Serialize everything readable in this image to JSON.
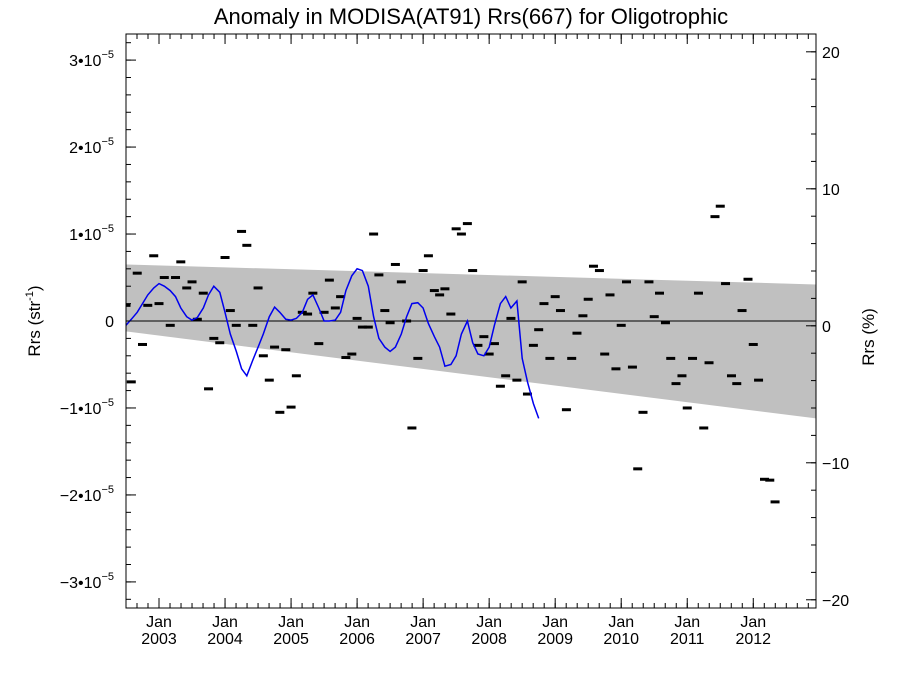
{
  "chart_data": {
    "type": "line",
    "title": "Anomaly in MODISA(AT91) Rrs(667) for Oligotrophic",
    "ylabel_left": "Rrs (str",
    "ylabel_left_sup": "-1",
    "ylabel_left_close": ")",
    "ylabel_right": "Rrs (%)",
    "ylim_left": [
      -3.3e-05,
      3.3e-05
    ],
    "ylim_right": [
      -20.6,
      21.3
    ],
    "xlim": [
      2002.5,
      2012.95
    ],
    "left_ticks": [
      {
        "value": 3e-05,
        "mant": "3•10",
        "exp": "−5"
      },
      {
        "value": 2e-05,
        "mant": "2•10",
        "exp": "−5"
      },
      {
        "value": 1e-05,
        "mant": "1•10",
        "exp": "−5"
      },
      {
        "value": 0,
        "mant": "0",
        "exp": ""
      },
      {
        "value": -1e-05,
        "mant": "−1•10",
        "exp": "−5"
      },
      {
        "value": -2e-05,
        "mant": "−2•10",
        "exp": "−5"
      },
      {
        "value": -3e-05,
        "mant": "−3•10",
        "exp": "−5"
      }
    ],
    "right_ticks": [
      {
        "value": 20,
        "label": "20"
      },
      {
        "value": 10,
        "label": "10"
      },
      {
        "value": 0,
        "label": "0"
      },
      {
        "value": -10,
        "label": "−10"
      },
      {
        "value": -20,
        "label": "−20"
      }
    ],
    "x_ticks": [
      {
        "value": 2003,
        "month": "Jan",
        "year": "2003"
      },
      {
        "value": 2004,
        "month": "Jan",
        "year": "2004"
      },
      {
        "value": 2005,
        "month": "Jan",
        "year": "2005"
      },
      {
        "value": 2006,
        "month": "Jan",
        "year": "2006"
      },
      {
        "value": 2007,
        "month": "Jan",
        "year": "2007"
      },
      {
        "value": 2008,
        "month": "Jan",
        "year": "2008"
      },
      {
        "value": 2009,
        "month": "Jan",
        "year": "2009"
      },
      {
        "value": 2010,
        "month": "Jan",
        "year": "2010"
      },
      {
        "value": 2011,
        "month": "Jan",
        "year": "2011"
      },
      {
        "value": 2012,
        "month": "Jan",
        "year": "2012"
      }
    ],
    "band": {
      "color": "#c0c0c0",
      "x": [
        2002.5,
        2012.95
      ],
      "upper": [
        6.5e-06,
        4.2e-06
      ],
      "lower": [
        -1.2e-06,
        -1.12e-05
      ]
    },
    "line_color": "#0000ee",
    "marker_color": "#000000",
    "monthly_anomaly": [
      [
        2002.5,
        1.8e-06
      ],
      [
        2002.58,
        -7e-06
      ],
      [
        2002.67,
        5.5e-06
      ],
      [
        2002.75,
        -2.7e-06
      ],
      [
        2002.83,
        1.8e-06
      ],
      [
        2002.92,
        7.5e-06
      ],
      [
        2003.0,
        2e-06
      ],
      [
        2003.08,
        5e-06
      ],
      [
        2003.17,
        -5e-07
      ],
      [
        2003.25,
        5e-06
      ],
      [
        2003.33,
        6.8e-06
      ],
      [
        2003.42,
        3.8e-06
      ],
      [
        2003.5,
        4.5e-06
      ],
      [
        2003.58,
        2e-07
      ],
      [
        2003.67,
        3.2e-06
      ],
      [
        2003.75,
        -7.8e-06
      ],
      [
        2003.83,
        -2e-06
      ],
      [
        2003.92,
        -2.5e-06
      ],
      [
        2004.0,
        7.3e-06
      ],
      [
        2004.08,
        1.2e-06
      ],
      [
        2004.17,
        -5e-07
      ],
      [
        2004.25,
        1.03e-05
      ],
      [
        2004.33,
        8.7e-06
      ],
      [
        2004.42,
        -5e-07
      ],
      [
        2004.5,
        3.8e-06
      ],
      [
        2004.58,
        -4e-06
      ],
      [
        2004.67,
        -6.8e-06
      ],
      [
        2004.75,
        -3e-06
      ],
      [
        2004.83,
        -1.05e-05
      ],
      [
        2004.92,
        -3.3e-06
      ],
      [
        2005.0,
        -9.9e-06
      ],
      [
        2005.08,
        -6.3e-06
      ],
      [
        2005.17,
        1e-06
      ],
      [
        2005.25,
        8e-07
      ],
      [
        2005.33,
        3.2e-06
      ],
      [
        2005.42,
        -2.6e-06
      ],
      [
        2005.5,
        1e-06
      ],
      [
        2005.58,
        4.7e-06
      ],
      [
        2005.67,
        1.5e-06
      ],
      [
        2005.75,
        2.8e-06
      ],
      [
        2005.83,
        -4.2e-06
      ],
      [
        2005.92,
        -3.8e-06
      ],
      [
        2006.0,
        3e-07
      ],
      [
        2006.08,
        -7e-07
      ],
      [
        2006.17,
        -7e-07
      ],
      [
        2006.25,
        1e-05
      ],
      [
        2006.33,
        5.3e-06
      ],
      [
        2006.42,
        1.2e-06
      ],
      [
        2006.5,
        -2e-07
      ],
      [
        2006.58,
        6.5e-06
      ],
      [
        2006.67,
        4.5e-06
      ],
      [
        2006.75,
        0.0
      ],
      [
        2006.83,
        -1.23e-05
      ],
      [
        2006.92,
        -4.3e-06
      ],
      [
        2007.0,
        5.8e-06
      ],
      [
        2007.08,
        7.5e-06
      ],
      [
        2007.17,
        3.5e-06
      ],
      [
        2007.25,
        3e-06
      ],
      [
        2007.33,
        3.7e-06
      ],
      [
        2007.42,
        8e-07
      ],
      [
        2007.5,
        1.06e-05
      ],
      [
        2007.58,
        1e-05
      ],
      [
        2007.67,
        1.12e-05
      ],
      [
        2007.75,
        5.8e-06
      ],
      [
        2007.83,
        -2.8e-06
      ],
      [
        2007.92,
        -1.8e-06
      ],
      [
        2008.0,
        -3.8e-06
      ],
      [
        2008.08,
        -2.6e-06
      ],
      [
        2008.17,
        -7.5e-06
      ],
      [
        2008.25,
        -6.3e-06
      ],
      [
        2008.33,
        3e-07
      ],
      [
        2008.42,
        -6.8e-06
      ],
      [
        2008.5,
        4.5e-06
      ],
      [
        2008.58,
        -8.4e-06
      ],
      [
        2008.67,
        -2.8e-06
      ],
      [
        2008.75,
        -1e-06
      ],
      [
        2008.83,
        2e-06
      ],
      [
        2008.92,
        -4.3e-06
      ],
      [
        2009.0,
        2.8e-06
      ],
      [
        2009.08,
        1.2e-06
      ],
      [
        2009.17,
        -1.02e-05
      ],
      [
        2009.25,
        -4.3e-06
      ],
      [
        2009.33,
        -1.4e-06
      ],
      [
        2009.42,
        6e-07
      ],
      [
        2009.5,
        2.5e-06
      ],
      [
        2009.58,
        6.3e-06
      ],
      [
        2009.67,
        5.8e-06
      ],
      [
        2009.75,
        -3.8e-06
      ],
      [
        2009.83,
        3e-06
      ],
      [
        2009.92,
        -5.5e-06
      ],
      [
        2010.0,
        -5e-07
      ],
      [
        2010.08,
        4.5e-06
      ],
      [
        2010.17,
        -5.3e-06
      ],
      [
        2010.25,
        -1.7e-05
      ],
      [
        2010.33,
        -1.05e-05
      ],
      [
        2010.42,
        4.5e-06
      ],
      [
        2010.5,
        5e-07
      ],
      [
        2010.58,
        3.2e-06
      ],
      [
        2010.67,
        -2e-07
      ],
      [
        2010.75,
        -4.3e-06
      ],
      [
        2010.83,
        -7.2e-06
      ],
      [
        2010.92,
        -6.3e-06
      ],
      [
        2011.0,
        -1e-05
      ],
      [
        2011.08,
        -4.3e-06
      ],
      [
        2011.17,
        3.2e-06
      ],
      [
        2011.25,
        -1.23e-05
      ],
      [
        2011.33,
        -4.8e-06
      ],
      [
        2011.42,
        1.2e-05
      ],
      [
        2011.5,
        1.32e-05
      ],
      [
        2011.58,
        4.3e-06
      ],
      [
        2011.67,
        -6.3e-06
      ],
      [
        2011.75,
        -7.2e-06
      ],
      [
        2011.83,
        1.2e-06
      ],
      [
        2011.92,
        4.8e-06
      ],
      [
        2012.0,
        -2.7e-06
      ],
      [
        2012.08,
        -6.8e-06
      ],
      [
        2012.17,
        -1.82e-05
      ],
      [
        2012.25,
        -1.83e-05
      ],
      [
        2012.33,
        -2.08e-05
      ]
    ],
    "running_mean": [
      [
        2002.5,
        -5e-07
      ],
      [
        2002.58,
        2e-07
      ],
      [
        2002.67,
        1e-06
      ],
      [
        2002.75,
        2e-06
      ],
      [
        2002.83,
        3e-06
      ],
      [
        2002.92,
        3.8e-06
      ],
      [
        2003.0,
        4.3e-06
      ],
      [
        2003.08,
        4e-06
      ],
      [
        2003.17,
        3.5e-06
      ],
      [
        2003.25,
        2.8e-06
      ],
      [
        2003.33,
        1.5e-06
      ],
      [
        2003.42,
        5e-07
      ],
      [
        2003.5,
        1e-07
      ],
      [
        2003.58,
        4e-07
      ],
      [
        2003.67,
        1.5e-06
      ],
      [
        2003.75,
        3e-06
      ],
      [
        2003.83,
        4e-06
      ],
      [
        2003.92,
        3.3e-06
      ],
      [
        2004.0,
        1e-06
      ],
      [
        2004.08,
        -1.5e-06
      ],
      [
        2004.17,
        -3.5e-06
      ],
      [
        2004.25,
        -5.5e-06
      ],
      [
        2004.33,
        -6.3e-06
      ],
      [
        2004.42,
        -4.5e-06
      ],
      [
        2004.5,
        -3e-06
      ],
      [
        2004.58,
        -1.5e-06
      ],
      [
        2004.67,
        5e-07
      ],
      [
        2004.75,
        1.6e-06
      ],
      [
        2004.83,
        1e-06
      ],
      [
        2004.92,
        2e-07
      ],
      [
        2005.0,
        1e-07
      ],
      [
        2005.08,
        3e-07
      ],
      [
        2005.17,
        1e-06
      ],
      [
        2005.25,
        2.5e-06
      ],
      [
        2005.33,
        3e-06
      ],
      [
        2005.42,
        1.5e-06
      ],
      [
        2005.5,
        0.0
      ],
      [
        2005.58,
        0.0
      ],
      [
        2005.67,
        1e-07
      ],
      [
        2005.75,
        1e-06
      ],
      [
        2005.83,
        3.5e-06
      ],
      [
        2005.92,
        5.2e-06
      ],
      [
        2006.0,
        6e-06
      ],
      [
        2006.08,
        5.8e-06
      ],
      [
        2006.17,
        4e-06
      ],
      [
        2006.25,
        5e-07
      ],
      [
        2006.33,
        -2e-06
      ],
      [
        2006.42,
        -3e-06
      ],
      [
        2006.5,
        -3.5e-06
      ],
      [
        2006.58,
        -3e-06
      ],
      [
        2006.67,
        -1.5e-06
      ],
      [
        2006.75,
        5e-07
      ],
      [
        2006.83,
        2e-06
      ],
      [
        2006.92,
        2.1e-06
      ],
      [
        2007.0,
        1.5e-06
      ],
      [
        2007.08,
        -3e-07
      ],
      [
        2007.17,
        -1.8e-06
      ],
      [
        2007.25,
        -3e-06
      ],
      [
        2007.33,
        -5.2e-06
      ],
      [
        2007.42,
        -5e-06
      ],
      [
        2007.5,
        -4e-06
      ],
      [
        2007.58,
        -1.5e-06
      ],
      [
        2007.67,
        0.0
      ],
      [
        2007.75,
        -2.5e-06
      ],
      [
        2007.83,
        -3.8e-06
      ],
      [
        2007.92,
        -4e-06
      ],
      [
        2008.0,
        -3e-06
      ],
      [
        2008.08,
        -5e-07
      ],
      [
        2008.17,
        2e-06
      ],
      [
        2008.25,
        2.8e-06
      ],
      [
        2008.33,
        1.5e-06
      ],
      [
        2008.42,
        2.3e-06
      ],
      [
        2008.5,
        -4.3e-06
      ],
      [
        2008.58,
        -7e-06
      ],
      [
        2008.67,
        -9.5e-06
      ],
      [
        2008.75,
        -1.12e-05
      ]
    ]
  }
}
